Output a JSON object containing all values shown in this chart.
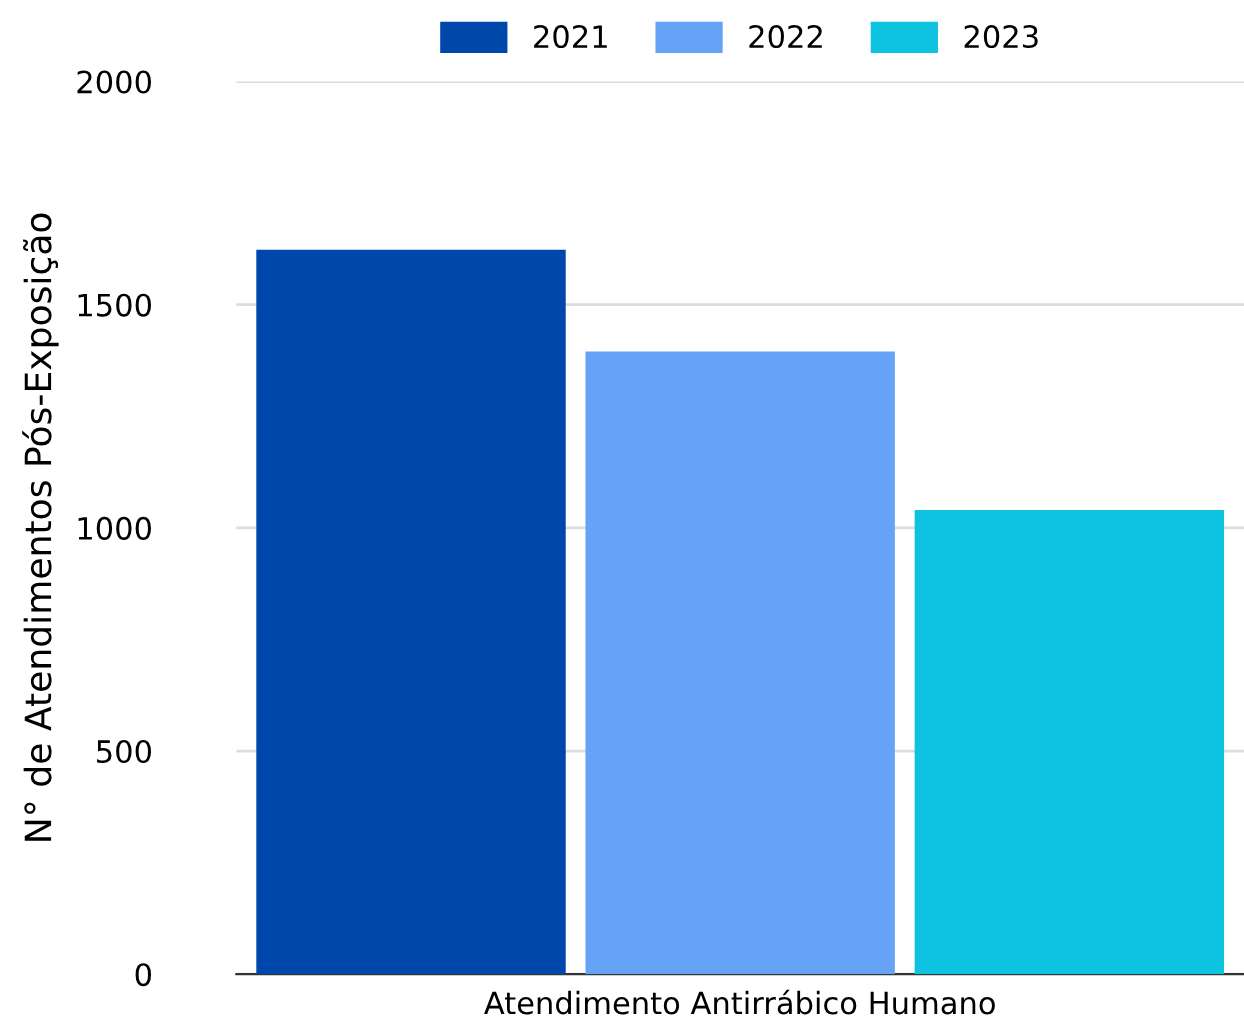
{
  "chart_data": {
    "type": "bar",
    "ylabel": "N° de Atendimentos Pós-Exposição",
    "categories": [
      "Atendimento Antirrábico Humano"
    ],
    "series": [
      {
        "name": "2021",
        "color": "#0047ab",
        "values": [
          1623
        ]
      },
      {
        "name": "2022",
        "color": "#66a3f7",
        "values": [
          1395
        ]
      },
      {
        "name": "2023",
        "color": "#0dc3e0",
        "values": [
          1040
        ]
      }
    ],
    "ylim": [
      0,
      2000
    ],
    "yticks": [
      0,
      500,
      1000,
      1500,
      2000
    ],
    "grid": "y",
    "legend": "top"
  }
}
